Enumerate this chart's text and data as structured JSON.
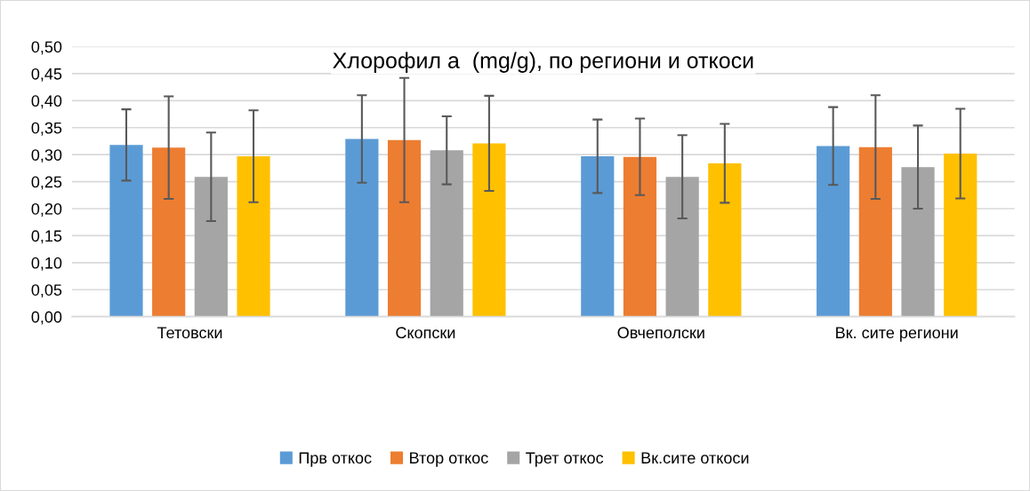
{
  "chart_data": {
    "type": "bar",
    "title": "Хлорофил а  (mg/g), по региони и откоси",
    "categories": [
      "Тетовски",
      "Скопски",
      "Овчеполски",
      "Вк. сите региони"
    ],
    "series": [
      {
        "name": "Прв откос",
        "color": "#5b9bd5",
        "values": [
          0.318,
          0.329,
          0.297,
          0.316
        ],
        "errors": [
          0.066,
          0.081,
          0.068,
          0.072
        ]
      },
      {
        "name": "Втор откос",
        "color": "#ed7d31",
        "values": [
          0.313,
          0.327,
          0.296,
          0.314
        ],
        "errors": [
          0.095,
          0.115,
          0.071,
          0.096
        ]
      },
      {
        "name": "Трет откос",
        "color": "#a5a5a5",
        "values": [
          0.259,
          0.308,
          0.259,
          0.277
        ],
        "errors": [
          0.082,
          0.063,
          0.077,
          0.077
        ]
      },
      {
        "name": "Вк.сите откоси",
        "color": "#ffc000",
        "values": [
          0.297,
          0.321,
          0.284,
          0.302
        ],
        "errors": [
          0.085,
          0.088,
          0.073,
          0.083
        ]
      }
    ],
    "ylim": [
      0,
      0.5
    ],
    "yticks": [
      {
        "value": 0,
        "label": "0,00"
      },
      {
        "value": 0.05,
        "label": "0,05"
      },
      {
        "value": 0.1,
        "label": "0,10"
      },
      {
        "value": 0.15,
        "label": "0,15"
      },
      {
        "value": 0.2,
        "label": "0,20"
      },
      {
        "value": 0.25,
        "label": "0,25"
      },
      {
        "value": 0.3,
        "label": "0,30"
      },
      {
        "value": 0.35,
        "label": "0,35"
      },
      {
        "value": 0.4,
        "label": "0,40"
      },
      {
        "value": 0.45,
        "label": "0,45"
      },
      {
        "value": 0.5,
        "label": "0,50"
      }
    ],
    "grid": "y",
    "legend": "bottom"
  }
}
